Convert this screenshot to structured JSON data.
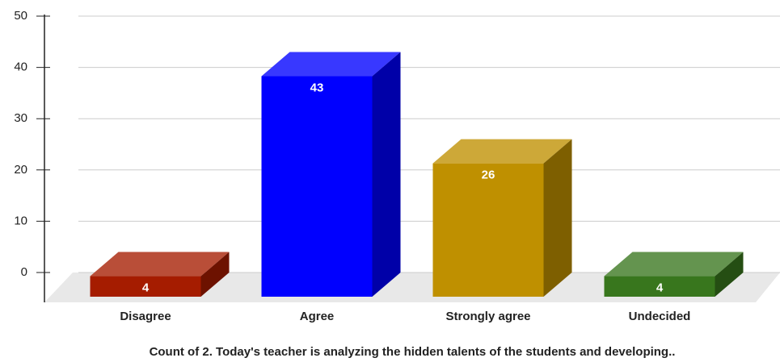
{
  "chart_data": {
    "type": "bar3d",
    "title": "Count of 2. Today's teacher is analyzing the hidden talents of the students and developing..",
    "categories": [
      "Disagree",
      "Agree",
      "Strongly agree",
      "Undecided"
    ],
    "values": [
      4,
      43,
      26,
      4
    ],
    "colors": [
      "#a51c00",
      "#0000ff",
      "#bf9000",
      "#38761d"
    ],
    "ylim": [
      0,
      50
    ],
    "yticks": [
      0,
      10,
      20,
      30,
      40,
      50
    ],
    "grid": true
  }
}
